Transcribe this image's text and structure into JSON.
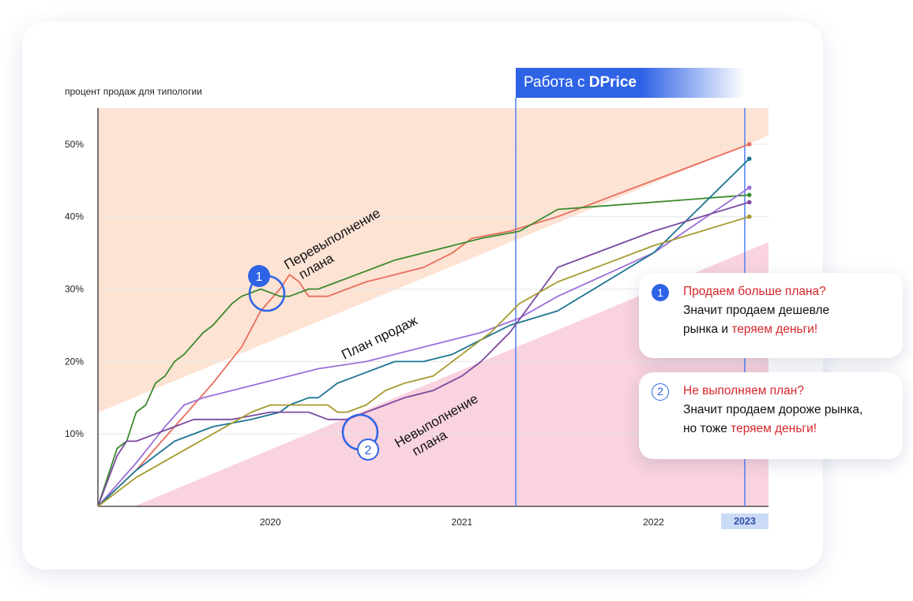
{
  "chart_data": {
    "type": "line",
    "ylabel": "процент продаж для типологии",
    "y_ticks": [
      "10%",
      "20%",
      "30%",
      "40%",
      "50%"
    ],
    "ylim": [
      0,
      55
    ],
    "x_ticks": [
      "2020",
      "2021",
      "2022",
      "2023"
    ],
    "xlim": [
      2019.6,
      2023.1
    ],
    "highlight_year": "2023",
    "grid": true,
    "series": [
      {
        "color": "#e86e5d",
        "x": [
          2019.6,
          2019.8,
          2019.9,
          2020.0,
          2020.1,
          2020.2,
          2020.35,
          2020.45,
          2020.55,
          2020.6,
          2020.65,
          2020.7,
          2020.8,
          2020.9,
          2021.0,
          2021.15,
          2021.3,
          2021.45,
          2021.55,
          2021.75,
          2022.0,
          2023.0
        ],
        "y": [
          0,
          5,
          8,
          11,
          14,
          17,
          22,
          27,
          30,
          32,
          31,
          29,
          29,
          30,
          31,
          32,
          33,
          35,
          37,
          38,
          40,
          50
        ]
      },
      {
        "color": "#3d8a2e",
        "x": [
          2019.6,
          2019.7,
          2019.75,
          2019.8,
          2019.85,
          2019.9,
          2019.95,
          2020.0,
          2020.05,
          2020.15,
          2020.2,
          2020.3,
          2020.35,
          2020.45,
          2020.55,
          2020.6,
          2020.7,
          2020.75,
          2020.85,
          2020.95,
          2021.05,
          2021.15,
          2021.3,
          2021.45,
          2021.6,
          2021.8,
          2022.0,
          2023.0
        ],
        "y": [
          0,
          8,
          9,
          13,
          14,
          17,
          18,
          20,
          21,
          24,
          25,
          28,
          29,
          30,
          29,
          29,
          30,
          30,
          31,
          32,
          33,
          34,
          35,
          36,
          37,
          38,
          41,
          43
        ]
      },
      {
        "color": "#9c6fd9",
        "x": [
          2019.6,
          2019.8,
          2019.95,
          2020.05,
          2020.15,
          2020.3,
          2020.45,
          2020.6,
          2020.75,
          2021.0,
          2021.15,
          2021.3,
          2021.45,
          2021.6,
          2021.8,
          2022.0,
          2022.5,
          2023.0
        ],
        "y": [
          0,
          6,
          11,
          14,
          15,
          16,
          17,
          18,
          19,
          20,
          21,
          22,
          23,
          24,
          26,
          29,
          35,
          44
        ]
      },
      {
        "color": "#1e7494",
        "x": [
          2019.6,
          2019.8,
          2020.0,
          2020.2,
          2020.4,
          2020.55,
          2020.6,
          2020.7,
          2020.75,
          2020.85,
          2020.95,
          2021.05,
          2021.15,
          2021.3,
          2021.45,
          2021.6,
          2021.75,
          2022.0,
          2022.5,
          2023.0
        ],
        "y": [
          0,
          5,
          9,
          11,
          12,
          13,
          14,
          15,
          15,
          17,
          18,
          19,
          20,
          20,
          21,
          23,
          25,
          27,
          35,
          48
        ]
      },
      {
        "color": "#7a4aa0",
        "x": [
          2019.6,
          2019.7,
          2019.75,
          2019.8,
          2019.9,
          2020.0,
          2020.1,
          2020.3,
          2020.5,
          2020.6,
          2020.7,
          2020.8,
          2020.9,
          2021.0,
          2021.1,
          2021.2,
          2021.35,
          2021.5,
          2021.6,
          2021.75,
          2022.0,
          2022.5,
          2023.0
        ],
        "y": [
          0,
          7,
          9,
          9,
          10,
          11,
          12,
          12,
          13,
          13,
          13,
          12,
          12,
          13,
          14,
          15,
          16,
          18,
          20,
          24,
          33,
          38,
          42
        ]
      },
      {
        "color": "#a69a2f",
        "x": [
          2019.6,
          2019.8,
          2020.0,
          2020.2,
          2020.4,
          2020.5,
          2020.6,
          2020.7,
          2020.8,
          2020.85,
          2020.9,
          2021.0,
          2021.1,
          2021.2,
          2021.35,
          2021.5,
          2021.65,
          2021.8,
          2022.0,
          2022.5,
          2023.0
        ],
        "y": [
          0,
          4,
          7,
          10,
          13,
          14,
          14,
          14,
          14,
          13,
          13,
          14,
          16,
          17,
          18,
          21,
          24,
          28,
          31,
          36,
          40
        ]
      }
    ]
  },
  "zones": {
    "over_label_line1": "Перевыполнение",
    "over_label_line2": "плана",
    "plan_label": "План продаж",
    "under_label_line1": "Невыполнение",
    "under_label_line2": "плана",
    "marker1": "1",
    "marker2": "2"
  },
  "banner": {
    "prefix": "Работа с ",
    "brand": "DPrice"
  },
  "callout1": {
    "num": "1",
    "line1_red": "Продаем больше плана?",
    "line2": "Значит продаем дешевле",
    "line3_pre": "рынка и ",
    "line3_red": "теряем деньги!"
  },
  "callout2": {
    "num": "2",
    "line1_red": "Не выполняем план?",
    "line2": "Значит продаем дороже рынка,",
    "line3_pre": "но тоже ",
    "line3_red": "теряем деньги!"
  },
  "colors": {
    "accent": "#2f63e6",
    "over_zone": "#fde3d4",
    "under_zone": "#f9d3de",
    "red_text": "#d6262c"
  }
}
